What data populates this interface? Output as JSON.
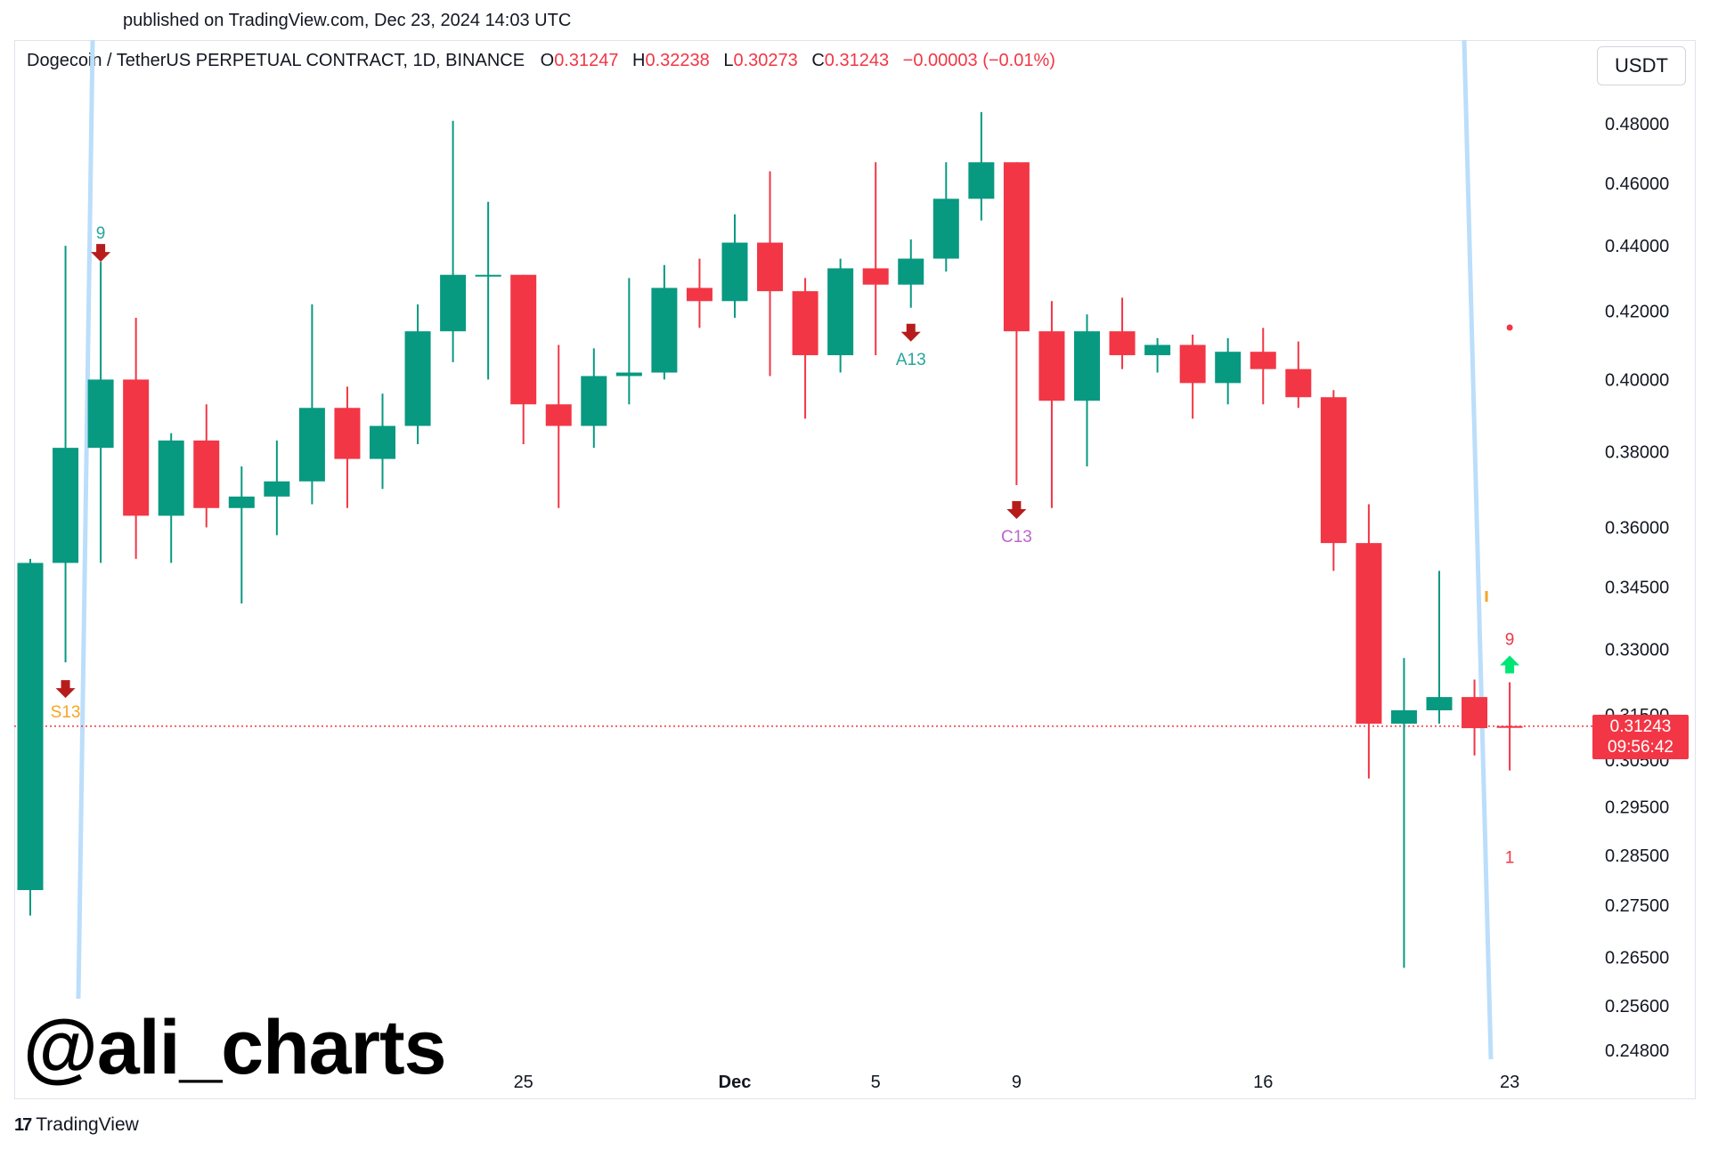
{
  "header": {
    "published": "published on TradingView.com, Dec 23, 2024 14:03 UTC"
  },
  "legend": {
    "symbol": "Dogecoin / TetherUS PERPETUAL CONTRACT, 1D, BINANCE",
    "o_label": "O",
    "o_value": "0.31247",
    "h_label": "H",
    "h_value": "0.32238",
    "l_label": "L",
    "l_value": "0.30273",
    "c_label": "C",
    "c_value": "0.31243",
    "change": "−0.00003 (−0.01%)"
  },
  "currency_button": "USDT",
  "price_badge": {
    "price": "0.31243",
    "countdown": "09:56:42"
  },
  "watermark": "@ali_charts",
  "brand": {
    "logo": "17",
    "name": "TradingView"
  },
  "colors": {
    "up": "#089981",
    "down": "#f23645",
    "trendline": "#bbdefb",
    "arrow_down": "#b71c1c",
    "arrow_up": "#00e676",
    "label_teal": "#26a69a",
    "label_orange": "#f5a623",
    "label_purple": "#ba68c8",
    "label_red": "#f23645"
  },
  "chart_data": {
    "type": "candlestick",
    "y_ticks": [
      "0.48000",
      "0.46000",
      "0.44000",
      "0.42000",
      "0.40000",
      "0.38000",
      "0.36000",
      "0.34500",
      "0.33000",
      "0.31500",
      "0.30500",
      "0.29500",
      "0.28500",
      "0.27500",
      "0.26500",
      "0.25600",
      "0.24800"
    ],
    "x_ticks": [
      {
        "label": "25",
        "index": 14
      },
      {
        "label": "Dec",
        "index": 20
      },
      {
        "label": "5",
        "index": 24
      },
      {
        "label": "9",
        "index": 28
      },
      {
        "label": "16",
        "index": 35
      },
      {
        "label": "23",
        "index": 42
      }
    ],
    "candles": [
      {
        "o": 0.278,
        "h": 0.352,
        "l": 0.273,
        "c": 0.351
      },
      {
        "o": 0.351,
        "h": 0.44,
        "l": 0.327,
        "c": 0.381
      },
      {
        "o": 0.381,
        "h": 0.435,
        "l": 0.351,
        "c": 0.4
      },
      {
        "o": 0.4,
        "h": 0.418,
        "l": 0.352,
        "c": 0.363
      },
      {
        "o": 0.363,
        "h": 0.385,
        "l": 0.351,
        "c": 0.383
      },
      {
        "o": 0.383,
        "h": 0.393,
        "l": 0.36,
        "c": 0.365
      },
      {
        "o": 0.365,
        "h": 0.376,
        "l": 0.341,
        "c": 0.368
      },
      {
        "o": 0.368,
        "h": 0.383,
        "l": 0.358,
        "c": 0.372
      },
      {
        "o": 0.372,
        "h": 0.422,
        "l": 0.366,
        "c": 0.392
      },
      {
        "o": 0.392,
        "h": 0.398,
        "l": 0.365,
        "c": 0.378
      },
      {
        "o": 0.378,
        "h": 0.396,
        "l": 0.37,
        "c": 0.387
      },
      {
        "o": 0.387,
        "h": 0.422,
        "l": 0.382,
        "c": 0.414
      },
      {
        "o": 0.414,
        "h": 0.481,
        "l": 0.405,
        "c": 0.431
      },
      {
        "o": 0.431,
        "h": 0.454,
        "l": 0.4,
        "c": 0.431
      },
      {
        "o": 0.431,
        "h": 0.429,
        "l": 0.382,
        "c": 0.393
      },
      {
        "o": 0.393,
        "h": 0.41,
        "l": 0.365,
        "c": 0.387
      },
      {
        "o": 0.387,
        "h": 0.409,
        "l": 0.381,
        "c": 0.401
      },
      {
        "o": 0.401,
        "h": 0.43,
        "l": 0.393,
        "c": 0.402
      },
      {
        "o": 0.402,
        "h": 0.434,
        "l": 0.4,
        "c": 0.427
      },
      {
        "o": 0.427,
        "h": 0.436,
        "l": 0.415,
        "c": 0.423
      },
      {
        "o": 0.423,
        "h": 0.45,
        "l": 0.418,
        "c": 0.441
      },
      {
        "o": 0.441,
        "h": 0.464,
        "l": 0.401,
        "c": 0.426
      },
      {
        "o": 0.426,
        "h": 0.43,
        "l": 0.389,
        "c": 0.407
      },
      {
        "o": 0.407,
        "h": 0.436,
        "l": 0.402,
        "c": 0.433
      },
      {
        "o": 0.433,
        "h": 0.467,
        "l": 0.407,
        "c": 0.428
      },
      {
        "o": 0.428,
        "h": 0.442,
        "l": 0.421,
        "c": 0.436
      },
      {
        "o": 0.436,
        "h": 0.467,
        "l": 0.432,
        "c": 0.455
      },
      {
        "o": 0.455,
        "h": 0.484,
        "l": 0.448,
        "c": 0.467
      },
      {
        "o": 0.467,
        "h": 0.466,
        "l": 0.371,
        "c": 0.414
      },
      {
        "o": 0.414,
        "h": 0.423,
        "l": 0.365,
        "c": 0.394
      },
      {
        "o": 0.394,
        "h": 0.419,
        "l": 0.376,
        "c": 0.414
      },
      {
        "o": 0.414,
        "h": 0.424,
        "l": 0.403,
        "c": 0.407
      },
      {
        "o": 0.407,
        "h": 0.412,
        "l": 0.402,
        "c": 0.41
      },
      {
        "o": 0.41,
        "h": 0.413,
        "l": 0.389,
        "c": 0.399
      },
      {
        "o": 0.399,
        "h": 0.412,
        "l": 0.393,
        "c": 0.408
      },
      {
        "o": 0.408,
        "h": 0.415,
        "l": 0.393,
        "c": 0.403
      },
      {
        "o": 0.403,
        "h": 0.411,
        "l": 0.392,
        "c": 0.395
      },
      {
        "o": 0.395,
        "h": 0.397,
        "l": 0.349,
        "c": 0.356
      },
      {
        "o": 0.356,
        "h": 0.366,
        "l": 0.301,
        "c": 0.313
      },
      {
        "o": 0.313,
        "h": 0.328,
        "l": 0.263,
        "c": 0.316
      },
      {
        "o": 0.316,
        "h": 0.349,
        "l": 0.313,
        "c": 0.319
      },
      {
        "o": 0.319,
        "h": 0.323,
        "l": 0.306,
        "c": 0.312
      },
      {
        "o": 0.31247,
        "h": 0.32238,
        "l": 0.30273,
        "c": 0.31243
      }
    ],
    "last_price": 0.31243,
    "annotations": [
      {
        "text": "9",
        "index": 2,
        "pos": "above",
        "color": "teal",
        "arrow": "down"
      },
      {
        "text": "S13",
        "index": 1,
        "pos": "above-low",
        "color": "orange",
        "arrow": "down"
      },
      {
        "text": "A13",
        "index": 25,
        "pos": "below",
        "color": "teal",
        "arrow": "down"
      },
      {
        "text": "C13",
        "index": 28,
        "pos": "below",
        "color": "purple",
        "arrow": "down"
      },
      {
        "text": "9",
        "index": 42,
        "pos": "above",
        "color": "red",
        "arrow": "up"
      },
      {
        "text": "1",
        "index": 42,
        "pos": "below",
        "color": "red"
      }
    ]
  }
}
